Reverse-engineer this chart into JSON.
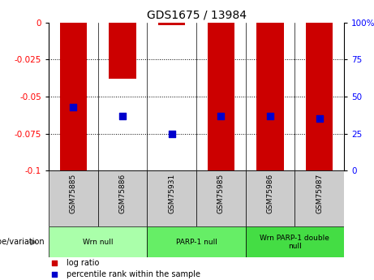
{
  "title": "GDS1675 / 13984",
  "samples": [
    "GSM75885",
    "GSM75886",
    "GSM75931",
    "GSM75985",
    "GSM75986",
    "GSM75987"
  ],
  "log_ratios": [
    -0.1,
    -0.038,
    -0.002,
    -0.1,
    -0.1,
    -0.1
  ],
  "percentile_ranks": [
    43,
    37,
    25,
    37,
    37,
    35
  ],
  "ylim_left": [
    -0.1,
    0
  ],
  "ylim_right": [
    0,
    100
  ],
  "yticks_left": [
    0,
    -0.025,
    -0.05,
    -0.075,
    -0.1
  ],
  "yticks_right": [
    100,
    75,
    50,
    25,
    0
  ],
  "bar_color": "#cc0000",
  "dot_color": "#0000cc",
  "groups": [
    {
      "label": "Wrn null",
      "samples": [
        0,
        1
      ],
      "color": "#aaffaa"
    },
    {
      "label": "PARP-1 null",
      "samples": [
        2,
        3
      ],
      "color": "#66ee66"
    },
    {
      "label": "Wrn PARP-1 double\nnull",
      "samples": [
        4,
        5
      ],
      "color": "#44dd44"
    }
  ],
  "genotype_label": "genotype/variation",
  "legend_log_ratio": "log ratio",
  "legend_percentile": "percentile rank within the sample",
  "bar_width": 0.55,
  "dot_size": 30
}
